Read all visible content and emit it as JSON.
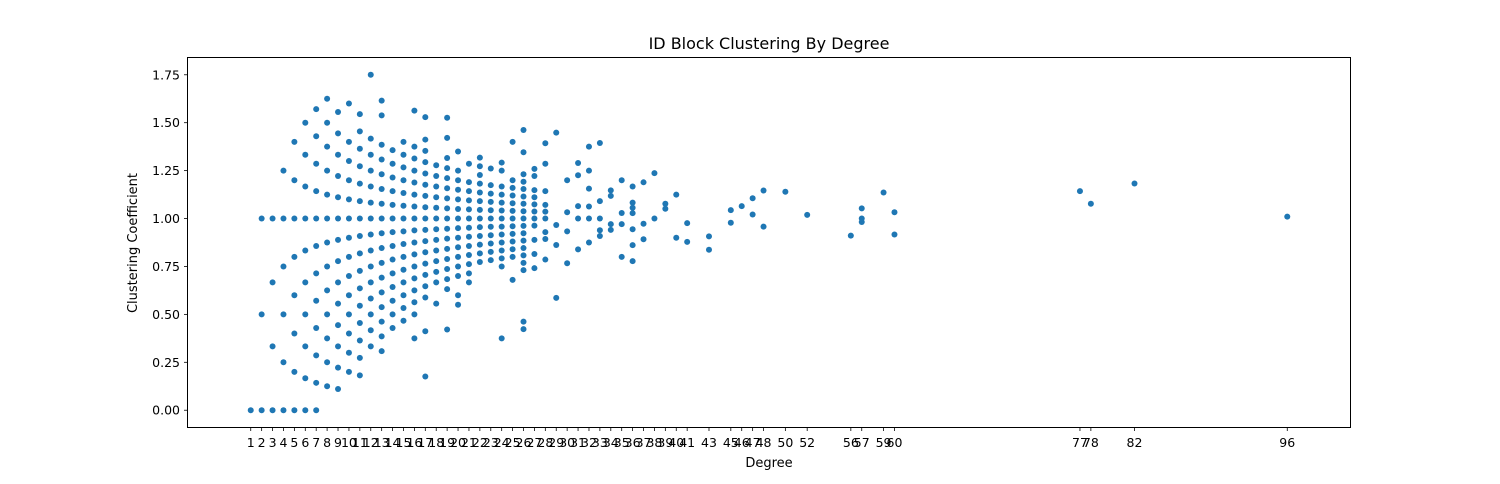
{
  "chart_data": {
    "type": "scatter",
    "title": "ID Block Clustering By Degree",
    "xlabel": "Degree",
    "ylabel": "Clustering Coefficient",
    "xlim": [
      -4.75,
      101.75
    ],
    "ylim": [
      -0.0875,
      1.8375
    ],
    "grid": false,
    "marker_color": "#1f77b4",
    "x_ticks": [
      1,
      2,
      3,
      4,
      5,
      6,
      7,
      8,
      9,
      10,
      11,
      12,
      13,
      14,
      15,
      16,
      17,
      18,
      19,
      20,
      21,
      22,
      23,
      24,
      25,
      26,
      27,
      28,
      29,
      30,
      31,
      32,
      33,
      34,
      35,
      36,
      37,
      38,
      39,
      40,
      41,
      43,
      45,
      46,
      47,
      48,
      50,
      52,
      56,
      57,
      59,
      60,
      77,
      78,
      82,
      96
    ],
    "y_ticks": [
      0.0,
      0.25,
      0.5,
      0.75,
      1.0,
      1.25,
      1.5,
      1.75
    ],
    "y_tick_labels": [
      "0.00",
      "0.25",
      "0.50",
      "0.75",
      "1.00",
      "1.25",
      "1.50",
      "1.75"
    ],
    "points": [
      [
        1,
        0
      ],
      [
        2,
        0
      ],
      [
        3,
        0
      ],
      [
        4,
        0
      ],
      [
        5,
        0
      ],
      [
        6,
        0
      ],
      [
        7,
        0
      ],
      [
        2,
        0.5
      ],
      [
        2,
        1.0
      ],
      [
        3,
        0.333
      ],
      [
        3,
        0.667
      ],
      [
        3,
        1.0
      ],
      [
        4,
        0.25
      ],
      [
        4,
        0.5
      ],
      [
        4,
        0.75
      ],
      [
        4,
        1.0
      ],
      [
        4,
        1.25
      ],
      [
        5,
        0.2
      ],
      [
        5,
        0.4
      ],
      [
        5,
        0.6
      ],
      [
        5,
        0.8
      ],
      [
        5,
        1.0
      ],
      [
        5,
        1.2
      ],
      [
        5,
        1.4
      ],
      [
        6,
        0.167
      ],
      [
        6,
        0.333
      ],
      [
        6,
        0.5
      ],
      [
        6,
        0.667
      ],
      [
        6,
        0.833
      ],
      [
        6,
        1.0
      ],
      [
        6,
        1.167
      ],
      [
        6,
        1.333
      ],
      [
        6,
        1.5
      ],
      [
        7,
        0.143
      ],
      [
        7,
        0.286
      ],
      [
        7,
        0.429
      ],
      [
        7,
        0.571
      ],
      [
        7,
        0.714
      ],
      [
        7,
        0.857
      ],
      [
        7,
        1.0
      ],
      [
        7,
        1.143
      ],
      [
        7,
        1.286
      ],
      [
        7,
        1.429
      ],
      [
        7,
        1.571
      ],
      [
        8,
        0.125
      ],
      [
        8,
        0.25
      ],
      [
        8,
        0.375
      ],
      [
        8,
        0.5
      ],
      [
        8,
        0.625
      ],
      [
        8,
        0.75
      ],
      [
        8,
        0.875
      ],
      [
        8,
        1.0
      ],
      [
        8,
        1.125
      ],
      [
        8,
        1.25
      ],
      [
        8,
        1.375
      ],
      [
        8,
        1.5
      ],
      [
        8,
        1.625
      ],
      [
        9,
        0.111
      ],
      [
        9,
        0.222
      ],
      [
        9,
        0.333
      ],
      [
        9,
        0.444
      ],
      [
        9,
        0.556
      ],
      [
        9,
        0.667
      ],
      [
        9,
        0.778
      ],
      [
        9,
        0.889
      ],
      [
        9,
        1.0
      ],
      [
        9,
        1.111
      ],
      [
        9,
        1.222
      ],
      [
        9,
        1.333
      ],
      [
        9,
        1.444
      ],
      [
        9,
        1.556
      ],
      [
        10,
        0.2
      ],
      [
        10,
        0.3
      ],
      [
        10,
        0.4
      ],
      [
        10,
        0.5
      ],
      [
        10,
        0.6
      ],
      [
        10,
        0.7
      ],
      [
        10,
        0.8
      ],
      [
        10,
        0.9
      ],
      [
        10,
        1.0
      ],
      [
        10,
        1.1
      ],
      [
        10,
        1.2
      ],
      [
        10,
        1.3
      ],
      [
        10,
        1.4
      ],
      [
        10,
        1.6
      ],
      [
        11,
        0.182
      ],
      [
        11,
        0.273
      ],
      [
        11,
        0.364
      ],
      [
        11,
        0.455
      ],
      [
        11,
        0.545
      ],
      [
        11,
        0.636
      ],
      [
        11,
        0.727
      ],
      [
        11,
        0.818
      ],
      [
        11,
        0.909
      ],
      [
        11,
        1.0
      ],
      [
        11,
        1.091
      ],
      [
        11,
        1.182
      ],
      [
        11,
        1.273
      ],
      [
        11,
        1.364
      ],
      [
        11,
        1.455
      ],
      [
        11,
        1.545
      ],
      [
        12,
        0.333
      ],
      [
        12,
        0.417
      ],
      [
        12,
        0.5
      ],
      [
        12,
        0.583
      ],
      [
        12,
        0.667
      ],
      [
        12,
        0.75
      ],
      [
        12,
        0.833
      ],
      [
        12,
        0.917
      ],
      [
        12,
        1.0
      ],
      [
        12,
        1.083
      ],
      [
        12,
        1.167
      ],
      [
        12,
        1.25
      ],
      [
        12,
        1.333
      ],
      [
        12,
        1.417
      ],
      [
        12,
        1.75
      ],
      [
        13,
        0.308
      ],
      [
        13,
        0.385
      ],
      [
        13,
        0.462
      ],
      [
        13,
        0.538
      ],
      [
        13,
        0.615
      ],
      [
        13,
        0.692
      ],
      [
        13,
        0.769
      ],
      [
        13,
        0.846
      ],
      [
        13,
        0.923
      ],
      [
        13,
        1.0
      ],
      [
        13,
        1.077
      ],
      [
        13,
        1.154
      ],
      [
        13,
        1.231
      ],
      [
        13,
        1.308
      ],
      [
        13,
        1.385
      ],
      [
        13,
        1.538
      ],
      [
        13,
        1.615
      ],
      [
        14,
        0.429
      ],
      [
        14,
        0.5
      ],
      [
        14,
        0.571
      ],
      [
        14,
        0.643
      ],
      [
        14,
        0.714
      ],
      [
        14,
        0.786
      ],
      [
        14,
        0.857
      ],
      [
        14,
        0.929
      ],
      [
        14,
        1.0
      ],
      [
        14,
        1.071
      ],
      [
        14,
        1.143
      ],
      [
        14,
        1.214
      ],
      [
        14,
        1.286
      ],
      [
        14,
        1.357
      ],
      [
        15,
        0.467
      ],
      [
        15,
        0.533
      ],
      [
        15,
        0.6
      ],
      [
        15,
        0.667
      ],
      [
        15,
        0.733
      ],
      [
        15,
        0.8
      ],
      [
        15,
        0.867
      ],
      [
        15,
        0.933
      ],
      [
        15,
        1.0
      ],
      [
        15,
        1.067
      ],
      [
        15,
        1.133
      ],
      [
        15,
        1.2
      ],
      [
        15,
        1.267
      ],
      [
        15,
        1.333
      ],
      [
        15,
        1.4
      ],
      [
        16,
        0.375
      ],
      [
        16,
        0.5
      ],
      [
        16,
        0.563
      ],
      [
        16,
        0.625
      ],
      [
        16,
        0.688
      ],
      [
        16,
        0.75
      ],
      [
        16,
        0.813
      ],
      [
        16,
        0.875
      ],
      [
        16,
        0.938
      ],
      [
        16,
        1.0
      ],
      [
        16,
        1.063
      ],
      [
        16,
        1.125
      ],
      [
        16,
        1.188
      ],
      [
        16,
        1.25
      ],
      [
        16,
        1.313
      ],
      [
        16,
        1.375
      ],
      [
        16,
        1.563
      ],
      [
        17,
        0.176
      ],
      [
        17,
        0.412
      ],
      [
        17,
        0.588
      ],
      [
        17,
        0.647
      ],
      [
        17,
        0.706
      ],
      [
        17,
        0.765
      ],
      [
        17,
        0.824
      ],
      [
        17,
        0.882
      ],
      [
        17,
        0.941
      ],
      [
        17,
        1.0
      ],
      [
        17,
        1.059
      ],
      [
        17,
        1.118
      ],
      [
        17,
        1.176
      ],
      [
        17,
        1.235
      ],
      [
        17,
        1.294
      ],
      [
        17,
        1.353
      ],
      [
        17,
        1.412
      ],
      [
        17,
        1.529
      ],
      [
        18,
        0.556
      ],
      [
        18,
        0.667
      ],
      [
        18,
        0.722
      ],
      [
        18,
        0.778
      ],
      [
        18,
        0.833
      ],
      [
        18,
        0.889
      ],
      [
        18,
        0.944
      ],
      [
        18,
        1.0
      ],
      [
        18,
        1.056
      ],
      [
        18,
        1.111
      ],
      [
        18,
        1.167
      ],
      [
        18,
        1.222
      ],
      [
        18,
        1.278
      ],
      [
        19,
        0.421
      ],
      [
        19,
        0.632
      ],
      [
        19,
        0.684
      ],
      [
        19,
        0.737
      ],
      [
        19,
        0.789
      ],
      [
        19,
        0.842
      ],
      [
        19,
        0.895
      ],
      [
        19,
        0.947
      ],
      [
        19,
        1.0
      ],
      [
        19,
        1.053
      ],
      [
        19,
        1.105
      ],
      [
        19,
        1.158
      ],
      [
        19,
        1.211
      ],
      [
        19,
        1.263
      ],
      [
        19,
        1.316
      ],
      [
        19,
        1.421
      ],
      [
        19,
        1.526
      ],
      [
        20,
        0.55
      ],
      [
        20,
        0.6
      ],
      [
        20,
        0.7
      ],
      [
        20,
        0.75
      ],
      [
        20,
        0.8
      ],
      [
        20,
        0.85
      ],
      [
        20,
        0.9
      ],
      [
        20,
        0.95
      ],
      [
        20,
        1.0
      ],
      [
        20,
        1.05
      ],
      [
        20,
        1.1
      ],
      [
        20,
        1.15
      ],
      [
        20,
        1.2
      ],
      [
        20,
        1.25
      ],
      [
        20,
        1.35
      ],
      [
        21,
        0.667
      ],
      [
        21,
        0.714
      ],
      [
        21,
        0.762
      ],
      [
        21,
        0.81
      ],
      [
        21,
        0.857
      ],
      [
        21,
        0.905
      ],
      [
        21,
        0.952
      ],
      [
        21,
        1.0
      ],
      [
        21,
        1.048
      ],
      [
        21,
        1.095
      ],
      [
        21,
        1.143
      ],
      [
        21,
        1.19
      ],
      [
        21,
        1.286
      ],
      [
        22,
        0.773
      ],
      [
        22,
        0.818
      ],
      [
        22,
        0.864
      ],
      [
        22,
        0.909
      ],
      [
        22,
        0.955
      ],
      [
        22,
        1.0
      ],
      [
        22,
        1.045
      ],
      [
        22,
        1.091
      ],
      [
        22,
        1.136
      ],
      [
        22,
        1.182
      ],
      [
        22,
        1.227
      ],
      [
        22,
        1.273
      ],
      [
        22,
        1.318
      ],
      [
        23,
        0.783
      ],
      [
        23,
        0.826
      ],
      [
        23,
        0.87
      ],
      [
        23,
        0.913
      ],
      [
        23,
        0.957
      ],
      [
        23,
        1.0
      ],
      [
        23,
        1.043
      ],
      [
        23,
        1.087
      ],
      [
        23,
        1.13
      ],
      [
        23,
        1.174
      ],
      [
        23,
        1.261
      ],
      [
        24,
        0.375
      ],
      [
        24,
        0.75
      ],
      [
        24,
        0.792
      ],
      [
        24,
        0.833
      ],
      [
        24,
        0.875
      ],
      [
        24,
        0.917
      ],
      [
        24,
        0.958
      ],
      [
        24,
        1.0
      ],
      [
        24,
        1.042
      ],
      [
        24,
        1.083
      ],
      [
        24,
        1.125
      ],
      [
        24,
        1.167
      ],
      [
        24,
        1.25
      ],
      [
        24,
        1.292
      ],
      [
        25,
        0.68
      ],
      [
        25,
        0.8
      ],
      [
        25,
        0.84
      ],
      [
        25,
        0.88
      ],
      [
        25,
        0.92
      ],
      [
        25,
        0.96
      ],
      [
        25,
        1.0
      ],
      [
        25,
        1.04
      ],
      [
        25,
        1.08
      ],
      [
        25,
        1.12
      ],
      [
        25,
        1.16
      ],
      [
        25,
        1.2
      ],
      [
        25,
        1.4
      ],
      [
        26,
        0.423
      ],
      [
        26,
        0.462
      ],
      [
        26,
        0.731
      ],
      [
        26,
        0.769
      ],
      [
        26,
        0.808
      ],
      [
        26,
        0.846
      ],
      [
        26,
        0.885
      ],
      [
        26,
        0.923
      ],
      [
        26,
        0.962
      ],
      [
        26,
        1.0
      ],
      [
        26,
        1.038
      ],
      [
        26,
        1.077
      ],
      [
        26,
        1.115
      ],
      [
        26,
        1.154
      ],
      [
        26,
        1.192
      ],
      [
        26,
        1.231
      ],
      [
        26,
        1.346
      ],
      [
        26,
        1.462
      ],
      [
        27,
        0.741
      ],
      [
        27,
        0.815
      ],
      [
        27,
        0.889
      ],
      [
        27,
        0.963
      ],
      [
        27,
        1.0
      ],
      [
        27,
        1.037
      ],
      [
        27,
        1.074
      ],
      [
        27,
        1.111
      ],
      [
        27,
        1.148
      ],
      [
        27,
        1.222
      ],
      [
        27,
        1.259
      ],
      [
        28,
        0.786
      ],
      [
        28,
        0.893
      ],
      [
        28,
        0.929
      ],
      [
        28,
        1.0
      ],
      [
        28,
        1.036
      ],
      [
        28,
        1.071
      ],
      [
        28,
        1.143
      ],
      [
        28,
        1.286
      ],
      [
        28,
        1.393
      ],
      [
        29,
        0.586
      ],
      [
        29,
        0.862
      ],
      [
        29,
        0.966
      ],
      [
        29,
        1.448
      ],
      [
        30,
        0.767
      ],
      [
        30,
        0.933
      ],
      [
        30,
        1.033
      ],
      [
        30,
        1.2
      ],
      [
        31,
        0.839
      ],
      [
        31,
        1.0
      ],
      [
        31,
        1.065
      ],
      [
        31,
        1.226
      ],
      [
        31,
        1.29
      ],
      [
        32,
        0.875
      ],
      [
        32,
        1.0
      ],
      [
        32,
        1.063
      ],
      [
        32,
        1.156
      ],
      [
        32,
        1.25
      ],
      [
        32,
        1.375
      ],
      [
        33,
        0.909
      ],
      [
        33,
        0.939
      ],
      [
        33,
        1.0
      ],
      [
        33,
        1.091
      ],
      [
        33,
        1.394
      ],
      [
        34,
        0.941
      ],
      [
        34,
        0.971
      ],
      [
        34,
        1.118
      ],
      [
        34,
        1.147
      ],
      [
        35,
        0.8
      ],
      [
        35,
        0.971
      ],
      [
        35,
        1.029
      ],
      [
        35,
        1.2
      ],
      [
        36,
        0.778
      ],
      [
        36,
        0.861
      ],
      [
        36,
        0.944
      ],
      [
        36,
        1.028
      ],
      [
        36,
        1.056
      ],
      [
        36,
        1.083
      ],
      [
        36,
        1.167
      ],
      [
        37,
        0.892
      ],
      [
        37,
        0.973
      ],
      [
        37,
        1.189
      ],
      [
        38,
        1.0
      ],
      [
        38,
        1.237
      ],
      [
        39,
        1.051
      ],
      [
        39,
        1.077
      ],
      [
        40,
        0.9
      ],
      [
        40,
        1.125
      ],
      [
        41,
        0.878
      ],
      [
        41,
        0.976
      ],
      [
        43,
        0.837
      ],
      [
        43,
        0.907
      ],
      [
        45,
        0.978
      ],
      [
        45,
        1.044
      ],
      [
        46,
        1.065
      ],
      [
        47,
        1.021
      ],
      [
        47,
        1.106
      ],
      [
        48,
        0.958
      ],
      [
        48,
        1.146
      ],
      [
        50,
        1.14
      ],
      [
        52,
        1.019
      ],
      [
        56,
        0.911
      ],
      [
        57,
        0.982
      ],
      [
        57,
        1.0
      ],
      [
        57,
        1.053
      ],
      [
        59,
        1.136
      ],
      [
        60,
        0.917
      ],
      [
        60,
        1.033
      ],
      [
        77,
        1.143
      ],
      [
        78,
        1.077
      ],
      [
        82,
        1.183
      ],
      [
        96,
        1.01
      ]
    ]
  }
}
